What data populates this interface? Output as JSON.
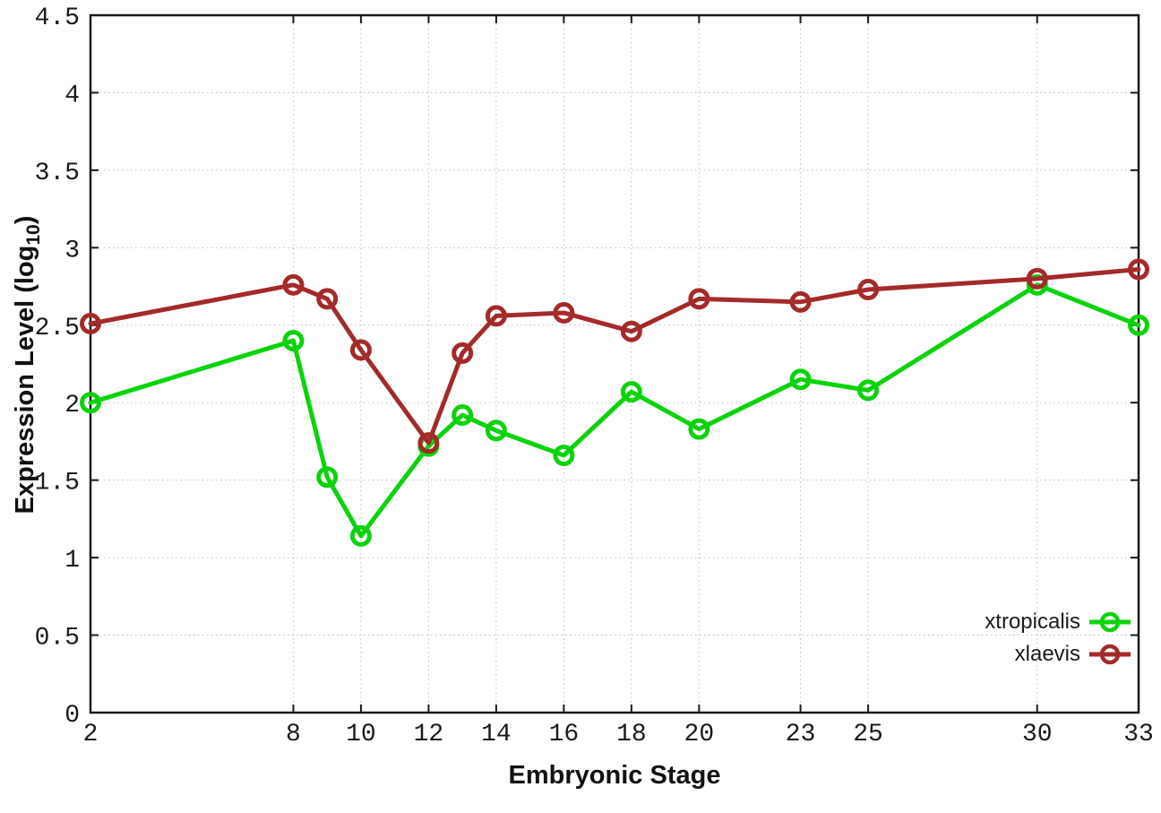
{
  "chart_data": {
    "type": "line",
    "title": "",
    "xlabel": "Embryonic Stage",
    "ylabel": "Expression Level (log10)",
    "ylabel_parts": {
      "pre": "Expression Level (log",
      "sub": "10",
      "post": ")"
    },
    "x": [
      2,
      8,
      9,
      10,
      12,
      13,
      14,
      16,
      18,
      20,
      23,
      25,
      30,
      33
    ],
    "series": [
      {
        "name": "xtropicalis",
        "color": "#0bd30b",
        "values": [
          2.0,
          2.4,
          1.52,
          1.14,
          1.72,
          1.92,
          1.82,
          1.66,
          2.07,
          1.83,
          2.15,
          2.08,
          2.76,
          2.5
        ]
      },
      {
        "name": "xlaevis",
        "color": "#a42a2a",
        "values": [
          2.51,
          2.76,
          2.67,
          2.34,
          1.74,
          2.32,
          2.56,
          2.58,
          2.46,
          2.67,
          2.65,
          2.73,
          2.8,
          2.86
        ]
      }
    ],
    "xlim": [
      2,
      33
    ],
    "ylim": [
      0,
      4.5
    ],
    "xticks": [
      2,
      8,
      10,
      12,
      14,
      16,
      18,
      20,
      23,
      25,
      30,
      33
    ],
    "yticks": [
      0,
      0.5,
      1,
      1.5,
      2,
      2.5,
      3,
      3.5,
      4,
      4.5
    ],
    "grid": true,
    "marker": "open-circle",
    "legend_position": "bottom-right"
  },
  "colors": {
    "background": "#ffffff",
    "border": "#1a1a1a",
    "grid": "#bdbdbd",
    "text": "#1a1a1a",
    "xtropicalis": "#0bd30b",
    "xlaevis": "#a42a2a"
  }
}
